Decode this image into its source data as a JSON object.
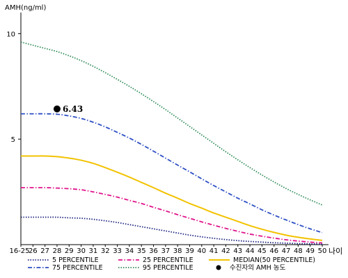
{
  "chart_data": {
    "type": "line",
    "ylabel": "AMH(ng/ml)",
    "xlabel": "나이",
    "ylim": [
      0,
      11
    ],
    "yticks": [
      5,
      10
    ],
    "categories": [
      "16-25",
      "26",
      "27",
      "28",
      "29",
      "30",
      "31",
      "32",
      "33",
      "34",
      "35",
      "36",
      "37",
      "38",
      "39",
      "40",
      "41",
      "42",
      "43",
      "44",
      "45",
      "46",
      "47",
      "48",
      "49",
      "50"
    ],
    "series": [
      {
        "name": "5 PERCENTILE",
        "color": "#1a237e",
        "dash": "dot",
        "values": [
          1.3,
          1.3,
          1.3,
          1.3,
          1.27,
          1.25,
          1.2,
          1.13,
          1.05,
          0.95,
          0.85,
          0.75,
          0.65,
          0.55,
          0.45,
          0.37,
          0.3,
          0.24,
          0.19,
          0.15,
          0.12,
          0.09,
          0.07,
          0.05,
          0.04,
          0.03
        ]
      },
      {
        "name": "25 PERCENTILE",
        "color": "#e0138c",
        "dash": "dashdot",
        "values": [
          2.7,
          2.7,
          2.7,
          2.68,
          2.65,
          2.6,
          2.5,
          2.38,
          2.25,
          2.1,
          1.95,
          1.77,
          1.6,
          1.42,
          1.25,
          1.08,
          0.92,
          0.77,
          0.63,
          0.5,
          0.4,
          0.31,
          0.23,
          0.17,
          0.12,
          0.08
        ]
      },
      {
        "name": "MEDIAN(50 PERCENTILE)",
        "color": "#f2c200",
        "dash": "solid",
        "values": [
          4.2,
          4.2,
          4.2,
          4.17,
          4.1,
          4.0,
          3.85,
          3.65,
          3.43,
          3.2,
          2.95,
          2.7,
          2.44,
          2.2,
          1.95,
          1.73,
          1.5,
          1.3,
          1.1,
          0.9,
          0.73,
          0.58,
          0.45,
          0.35,
          0.27,
          0.2
        ]
      },
      {
        "name": "75 PERCENTILE",
        "color": "#2d4fc4",
        "dash": "dashdot",
        "values": [
          6.2,
          6.2,
          6.2,
          6.18,
          6.1,
          5.98,
          5.8,
          5.58,
          5.32,
          5.05,
          4.75,
          4.43,
          4.1,
          3.77,
          3.45,
          3.12,
          2.8,
          2.5,
          2.2,
          1.93,
          1.65,
          1.4,
          1.17,
          0.95,
          0.75,
          0.57
        ]
      },
      {
        "name": "95 PERCENTILE",
        "color": "#2e8b57",
        "dash": "dot",
        "values": [
          9.6,
          9.45,
          9.3,
          9.15,
          8.95,
          8.72,
          8.45,
          8.15,
          7.83,
          7.5,
          7.15,
          6.78,
          6.4,
          6.0,
          5.6,
          5.2,
          4.8,
          4.4,
          4.02,
          3.65,
          3.3,
          2.97,
          2.66,
          2.38,
          2.12,
          1.88
        ]
      }
    ],
    "marker": {
      "name": "수진자의 AMH 농도",
      "category": "28",
      "value": 6.43,
      "label": "6.43",
      "color": "#000000"
    },
    "legend_position": "bottom",
    "grid": false
  }
}
